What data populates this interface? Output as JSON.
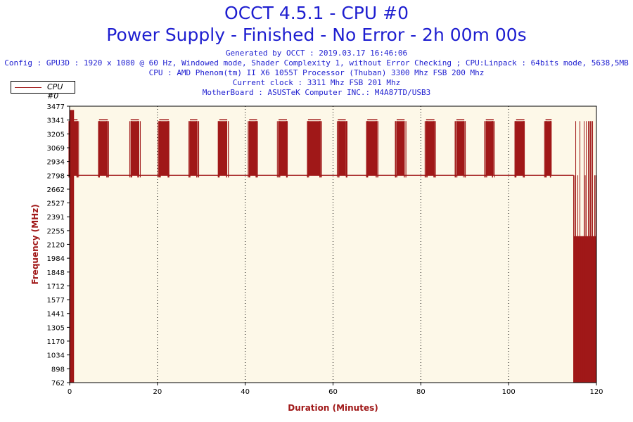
{
  "header": {
    "title_line1": "OCCT 4.5.1 - CPU #0",
    "title_line2": "Power Supply - Finished - No Error - 2h 00m 00s",
    "info_lines": [
      "Generated by OCCT : 2019.03.17 16:46:06",
      "Config : GPU3D : 1920 x 1080 @ 60 Hz, Windowed mode, Shader Complexity 1, without Error Checking ; CPU:Linpack : 64bits mode, 5638,5MB",
      "CPU : AMD Phenom(tm) II X6 1055T Processor (Thuban) 3300 Mhz FSB 200 Mhz",
      "Current clock : 3311 Mhz FSB 201 Mhz",
      "MotherBoard : ASUSTeK Computer INC.: M4A87TD/USB3"
    ]
  },
  "colors": {
    "title": "#1e1ed0",
    "axis_label": "#a01818",
    "series": "#a01818",
    "plot_background": "#fdf8e8"
  },
  "chart_data": {
    "type": "line",
    "xlabel": "Duration (Minutes)",
    "ylabel": "Frequency (MHz)",
    "xlim": [
      0,
      120
    ],
    "ylim": [
      762,
      3477
    ],
    "x_ticks": [
      0,
      20,
      40,
      60,
      80,
      100,
      120
    ],
    "y_ticks": [
      762,
      898,
      1034,
      1170,
      1305,
      1441,
      1577,
      1712,
      1848,
      1984,
      2120,
      2255,
      2391,
      2527,
      2662,
      2798,
      2934,
      3069,
      3205,
      3341,
      3477
    ],
    "grid": "vertical dotted",
    "legend": "top-left",
    "series": [
      {
        "name": "CPU #0",
        "baseline": 2798,
        "high": 3330,
        "bursts": [
          [
            0.1,
            1.8
          ],
          [
            6.7,
            8.7
          ],
          [
            13.9,
            15.8
          ],
          [
            20.4,
            22.6
          ],
          [
            27.4,
            29.1
          ],
          [
            34.1,
            35.9
          ],
          [
            40.9,
            42.7
          ],
          [
            47.6,
            49.5
          ],
          [
            54.3,
            57.2
          ],
          [
            61.1,
            62.9
          ],
          [
            67.8,
            70.1
          ],
          [
            74.5,
            76.3
          ],
          [
            81.2,
            83.1
          ],
          [
            88.1,
            89.9
          ],
          [
            94.8,
            96.6
          ],
          [
            101.7,
            103.6
          ],
          [
            108.4,
            109.8
          ]
        ],
        "startup_drop": {
          "from": 0,
          "to": 1.0,
          "low": 762
        },
        "end_section": {
          "from": 114.8,
          "to": 120,
          "mid": 2200,
          "low": 762
        }
      }
    ]
  }
}
